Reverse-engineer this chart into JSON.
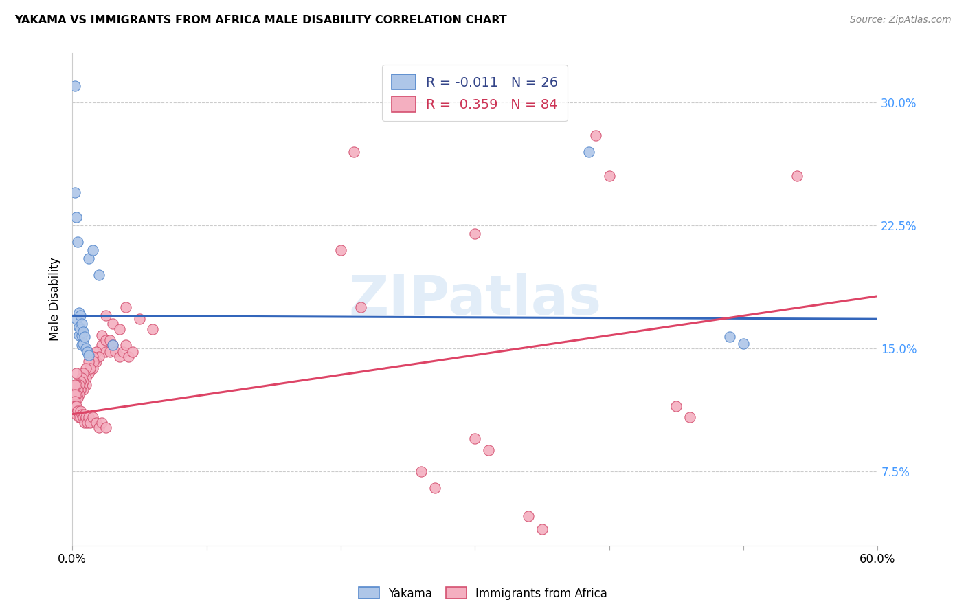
{
  "title": "YAKAMA VS IMMIGRANTS FROM AFRICA MALE DISABILITY CORRELATION CHART",
  "source": "Source: ZipAtlas.com",
  "ylabel": "Male Disability",
  "xlim": [
    0.0,
    0.6
  ],
  "ylim": [
    0.03,
    0.33
  ],
  "yticks": [
    0.075,
    0.15,
    0.225,
    0.3
  ],
  "ytick_labels": [
    "7.5%",
    "15.0%",
    "22.5%",
    "30.0%"
  ],
  "xticks": [
    0.0,
    0.1,
    0.2,
    0.3,
    0.4,
    0.5,
    0.6
  ],
  "xtick_labels": [
    "0.0%",
    "",
    "",
    "",
    "",
    "",
    "60.0%"
  ],
  "blue_color": "#aec6e8",
  "pink_color": "#f4afc0",
  "blue_edge_color": "#5588cc",
  "pink_edge_color": "#d45070",
  "blue_line_color": "#3366bb",
  "pink_line_color": "#dd4466",
  "watermark": "ZIPatlas",
  "yakama_points": [
    [
      0.002,
      0.31
    ],
    [
      0.012,
      0.205
    ],
    [
      0.015,
      0.21
    ],
    [
      0.02,
      0.195
    ],
    [
      0.002,
      0.245
    ],
    [
      0.003,
      0.23
    ],
    [
      0.004,
      0.215
    ],
    [
      0.003,
      0.168
    ],
    [
      0.005,
      0.172
    ],
    [
      0.005,
      0.163
    ],
    [
      0.005,
      0.158
    ],
    [
      0.006,
      0.17
    ],
    [
      0.006,
      0.162
    ],
    [
      0.007,
      0.165
    ],
    [
      0.007,
      0.158
    ],
    [
      0.007,
      0.152
    ],
    [
      0.008,
      0.16
    ],
    [
      0.008,
      0.153
    ],
    [
      0.009,
      0.157
    ],
    [
      0.01,
      0.15
    ],
    [
      0.011,
      0.148
    ],
    [
      0.012,
      0.146
    ],
    [
      0.03,
      0.152
    ],
    [
      0.385,
      0.27
    ],
    [
      0.49,
      0.157
    ],
    [
      0.5,
      0.153
    ]
  ],
  "africa_points": [
    [
      0.39,
      0.28
    ],
    [
      0.21,
      0.27
    ],
    [
      0.4,
      0.255
    ],
    [
      0.54,
      0.255
    ],
    [
      0.3,
      0.22
    ],
    [
      0.2,
      0.21
    ],
    [
      0.215,
      0.175
    ],
    [
      0.04,
      0.175
    ],
    [
      0.05,
      0.168
    ],
    [
      0.06,
      0.162
    ],
    [
      0.025,
      0.17
    ],
    [
      0.03,
      0.165
    ],
    [
      0.035,
      0.162
    ],
    [
      0.022,
      0.158
    ],
    [
      0.022,
      0.152
    ],
    [
      0.025,
      0.155
    ],
    [
      0.025,
      0.148
    ],
    [
      0.028,
      0.155
    ],
    [
      0.028,
      0.148
    ],
    [
      0.03,
      0.152
    ],
    [
      0.032,
      0.148
    ],
    [
      0.035,
      0.145
    ],
    [
      0.038,
      0.148
    ],
    [
      0.04,
      0.152
    ],
    [
      0.042,
      0.145
    ],
    [
      0.045,
      0.148
    ],
    [
      0.018,
      0.148
    ],
    [
      0.018,
      0.142
    ],
    [
      0.02,
      0.145
    ],
    [
      0.015,
      0.145
    ],
    [
      0.015,
      0.138
    ],
    [
      0.016,
      0.142
    ],
    [
      0.012,
      0.142
    ],
    [
      0.012,
      0.135
    ],
    [
      0.013,
      0.138
    ],
    [
      0.01,
      0.138
    ],
    [
      0.01,
      0.132
    ],
    [
      0.01,
      0.128
    ],
    [
      0.008,
      0.135
    ],
    [
      0.008,
      0.13
    ],
    [
      0.008,
      0.125
    ],
    [
      0.007,
      0.132
    ],
    [
      0.007,
      0.128
    ],
    [
      0.006,
      0.13
    ],
    [
      0.006,
      0.125
    ],
    [
      0.005,
      0.128
    ],
    [
      0.005,
      0.122
    ],
    [
      0.004,
      0.125
    ],
    [
      0.004,
      0.12
    ],
    [
      0.003,
      0.122
    ],
    [
      0.003,
      0.128
    ],
    [
      0.003,
      0.135
    ],
    [
      0.002,
      0.128
    ],
    [
      0.002,
      0.122
    ],
    [
      0.002,
      0.118
    ],
    [
      0.002,
      0.115
    ],
    [
      0.003,
      0.115
    ],
    [
      0.003,
      0.11
    ],
    [
      0.004,
      0.112
    ],
    [
      0.005,
      0.108
    ],
    [
      0.006,
      0.112
    ],
    [
      0.006,
      0.108
    ],
    [
      0.007,
      0.11
    ],
    [
      0.008,
      0.108
    ],
    [
      0.009,
      0.11
    ],
    [
      0.009,
      0.105
    ],
    [
      0.01,
      0.108
    ],
    [
      0.011,
      0.105
    ],
    [
      0.012,
      0.108
    ],
    [
      0.013,
      0.105
    ],
    [
      0.015,
      0.108
    ],
    [
      0.018,
      0.105
    ],
    [
      0.02,
      0.102
    ],
    [
      0.022,
      0.105
    ],
    [
      0.025,
      0.102
    ],
    [
      0.3,
      0.095
    ],
    [
      0.31,
      0.088
    ],
    [
      0.26,
      0.075
    ],
    [
      0.27,
      0.065
    ],
    [
      0.34,
      0.048
    ],
    [
      0.35,
      0.04
    ],
    [
      0.45,
      0.115
    ],
    [
      0.46,
      0.108
    ]
  ],
  "blue_line": {
    "x0": 0.0,
    "x1": 0.6,
    "y0": 0.17,
    "y1": 0.168
  },
  "pink_line": {
    "x0": 0.0,
    "x1": 0.6,
    "y0": 0.11,
    "y1": 0.182
  }
}
